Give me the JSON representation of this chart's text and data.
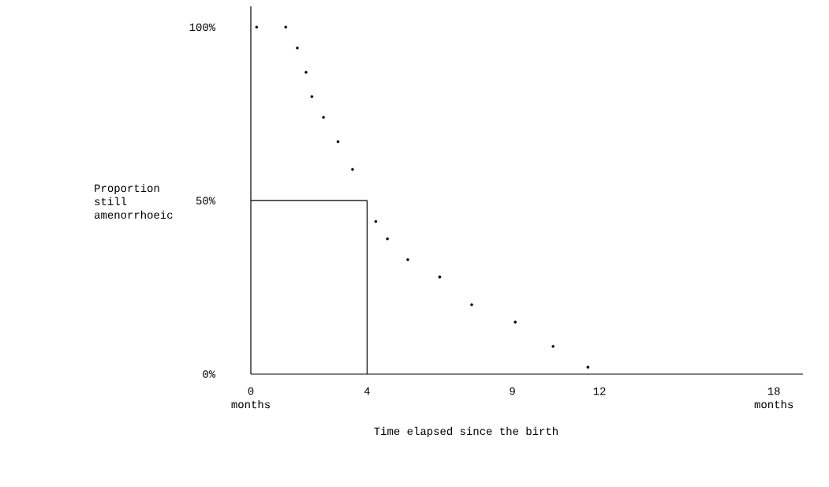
{
  "chart_data": {
    "type": "scatter",
    "xlabel": "Time elapsed since the birth",
    "ylabel": "Proportion still amenorrhoeic",
    "xlim": [
      0,
      19
    ],
    "ylim": [
      0,
      106
    ],
    "xticks": [
      {
        "value": 0,
        "label": "0 months"
      },
      4,
      9,
      12,
      {
        "value": 18,
        "label": "18 months"
      }
    ],
    "yticks": [
      {
        "value": 0,
        "label": "0%"
      },
      {
        "value": 50,
        "label": "50%"
      },
      {
        "value": 100,
        "label": "100%"
      }
    ],
    "series": [
      {
        "color": "#000000",
        "marker": "circle",
        "x": [
          0.2,
          1.2,
          1.6,
          1.9,
          2.1,
          2.5,
          3.0,
          3.5,
          4.3,
          4.7,
          5.4,
          6.5,
          7.6,
          9.1,
          10.4,
          11.6
        ],
        "values": [
          100,
          100,
          94,
          87,
          80,
          74,
          67,
          59,
          44,
          39,
          33,
          28,
          20,
          15,
          8,
          2
        ]
      },
      {
        "type": "line",
        "color": "#000000",
        "marker": "none",
        "line_style": "solid",
        "x": [
          0,
          4,
          4
        ],
        "values": [
          50,
          50,
          0
        ]
      }
    ]
  }
}
